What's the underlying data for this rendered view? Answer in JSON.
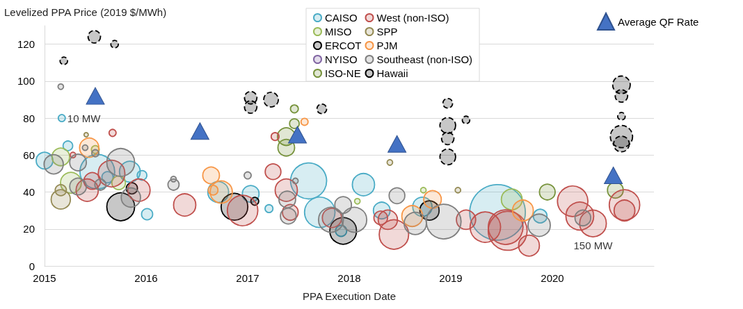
{
  "chart_data": {
    "type": "bubble",
    "ylabel": "Levelized PPA Price (2019 $/MWh)",
    "xlabel": "PPA Execution Date",
    "xlim": [
      2015,
      2021
    ],
    "xticks": [
      2015,
      2016,
      2017,
      2018,
      2019,
      2020
    ],
    "ylim": [
      0,
      130
    ],
    "yticks": [
      0,
      20,
      40,
      60,
      80,
      100,
      120
    ],
    "grid": "y",
    "legend": "top",
    "marker": "circle",
    "annotations": [
      {
        "text": "10 MW",
        "x": 2015.17,
        "y": 80
      },
      {
        "text": "150 MW",
        "x": 2020.4,
        "y": 23
      }
    ],
    "series": [
      {
        "name": "CAISO",
        "color": "#4bacc6",
        "x": [
          2015.17,
          2015.23,
          2015.0,
          2015.52,
          2015.84,
          2015.96,
          2016.01,
          2016.71,
          2015.62,
          2017.03,
          2017.21,
          2017.6,
          2017.71,
          2018.14,
          2017.92,
          2018.32,
          2018.72,
          2019.46,
          2019.88
        ],
        "values": [
          80,
          65,
          57,
          51,
          51,
          49,
          28,
          40,
          48,
          39,
          31,
          46,
          29,
          44,
          19,
          30,
          32,
          29,
          27
        ],
        "sizes": [
          0.016,
          0.03,
          0.09,
          0.39,
          0.14,
          0.03,
          0.04,
          0.14,
          0.04,
          0.09,
          0.02,
          0.42,
          0.3,
          0.16,
          0.04,
          0.09,
          0.12,
          1,
          0.06
        ]
      },
      {
        "name": "MISO",
        "color": "#9bbb59",
        "x": [
          2015.16,
          2015.26,
          2015.5,
          2015.73,
          2018.08,
          2018.73,
          2019.6
        ],
        "values": [
          59,
          45,
          63,
          45,
          35,
          41,
          36
        ],
        "sizes": [
          0.1,
          0.14,
          0.02,
          0.06,
          0.01,
          0.01,
          0.14
        ]
      },
      {
        "name": "ERCOT",
        "color": "#000000",
        "x": [
          2015.75,
          2015.86,
          2016.87,
          2017.07,
          2017.94,
          2018.79
        ],
        "values": [
          32,
          42,
          32,
          35,
          19,
          30
        ],
        "sizes": [
          0.25,
          0.04,
          0.23,
          0.02,
          0.23,
          0.12
        ]
      },
      {
        "name": "NYISO",
        "color": "#8064a2"
      },
      {
        "name": "ISO-NE",
        "color": "#77933c",
        "x": [
          2017.46,
          2017.46,
          2017.38,
          2017.38,
          2019.95,
          2020.62
        ],
        "values": [
          85,
          77,
          70,
          64,
          40,
          41
        ],
        "sizes": [
          0.02,
          0.03,
          0.1,
          0.09,
          0.08,
          0.08
        ]
      },
      {
        "name": "West (non-ISO)",
        "color": "#c0504d",
        "x": [
          2015.67,
          2015.28,
          2015.47,
          2015.42,
          2015.66,
          2015.93,
          2016.38,
          2016.95,
          2017.25,
          2017.38,
          2017.42,
          2017.27,
          2017.83,
          2018.38,
          2018.44,
          2018.31,
          2019.15,
          2019.34,
          2019.54,
          2019.77,
          2019.56,
          2020.2,
          2020.27,
          2020.4,
          2020.71,
          2020.71
        ],
        "values": [
          72,
          60,
          46,
          41,
          50,
          41,
          33,
          30,
          51,
          41,
          29,
          70,
          26,
          25,
          17,
          26,
          25,
          21,
          21,
          11,
          19,
          35,
          27,
          23,
          33,
          30
        ],
        "sizes": [
          0.016,
          0.01,
          0.09,
          0.16,
          0.23,
          0.16,
          0.16,
          0.3,
          0.08,
          0.16,
          0.08,
          0.02,
          0.12,
          0.12,
          0.28,
          0.06,
          0.12,
          0.3,
          0.39,
          0.14,
          0.49,
          0.3,
          0.25,
          0.23,
          0.3,
          0.14
        ]
      },
      {
        "name": "SPP",
        "color": "#948a54",
        "x": [
          2015.16,
          2015.16,
          2015.41,
          2018.4,
          2019.07
        ],
        "values": [
          36,
          41,
          71,
          56,
          41
        ],
        "sizes": [
          0.12,
          0.04,
          0.006,
          0.01,
          0.01
        ]
      },
      {
        "name": "PJM",
        "color": "#f79646",
        "x": [
          2015.44,
          2016.64,
          2016.66,
          2016.74,
          2017.56,
          2018.62,
          2018.82,
          2019.71
        ],
        "values": [
          64,
          49,
          41,
          40,
          78,
          27,
          36,
          30
        ],
        "sizes": [
          0.12,
          0.09,
          0.03,
          0.16,
          0.016,
          0.14,
          0.1,
          0.14
        ]
      },
      {
        "name": "Southeast (non-ISO)",
        "color": "#7f7f7f",
        "x": [
          2015.16,
          2015.09,
          2015.33,
          2015.4,
          2015.5,
          2015.33,
          2015.55,
          2015.75,
          2015.85,
          2016.27,
          2016.27,
          2017.0,
          2017.47,
          2017.39,
          2017.4,
          2017.94,
          2017.82,
          2018.05,
          2018.47,
          2018.65,
          2018.93,
          2019.87,
          2020.3
        ],
        "values": [
          97,
          55,
          56,
          64,
          61,
          43,
          44,
          56,
          37,
          44,
          47,
          49,
          46,
          36,
          27,
          33,
          25,
          25,
          38,
          23,
          24,
          22,
          26
        ],
        "sizes": [
          0.01,
          0.12,
          0.09,
          0.01,
          0.016,
          0.09,
          0.04,
          0.25,
          0.12,
          0.04,
          0.01,
          0.016,
          0.01,
          0.09,
          0.08,
          0.09,
          0.2,
          0.2,
          0.08,
          0.16,
          0.39,
          0.16,
          0.08
        ]
      },
      {
        "name": "Hawaii",
        "color": "#000000",
        "line_style": "dashed",
        "x": [
          2015.19,
          2015.49,
          2015.69,
          2017.03,
          2017.03,
          2017.23,
          2017.73,
          2018.97,
          2018.97,
          2018.97,
          2018.97,
          2019.15,
          2020.68,
          2020.68,
          2020.68,
          2020.68,
          2020.68
        ],
        "values": [
          111,
          124,
          120,
          91,
          86,
          90,
          85,
          88,
          76,
          69,
          59,
          79,
          98,
          92,
          81,
          70,
          66
        ],
        "sizes": [
          0.018,
          0.05,
          0.018,
          0.05,
          0.05,
          0.07,
          0.03,
          0.03,
          0.08,
          0.05,
          0.08,
          0.018,
          0.1,
          0.05,
          0.018,
          0.16,
          0.08
        ]
      },
      {
        "name": "Average QF Rate",
        "type": "scatter",
        "marker": "triangle",
        "color": "#4472c4",
        "x": [
          2015.5,
          2016.53,
          2017.49,
          2018.47,
          2020.6
        ],
        "values": [
          92,
          73,
          71,
          66,
          49
        ]
      }
    ]
  }
}
